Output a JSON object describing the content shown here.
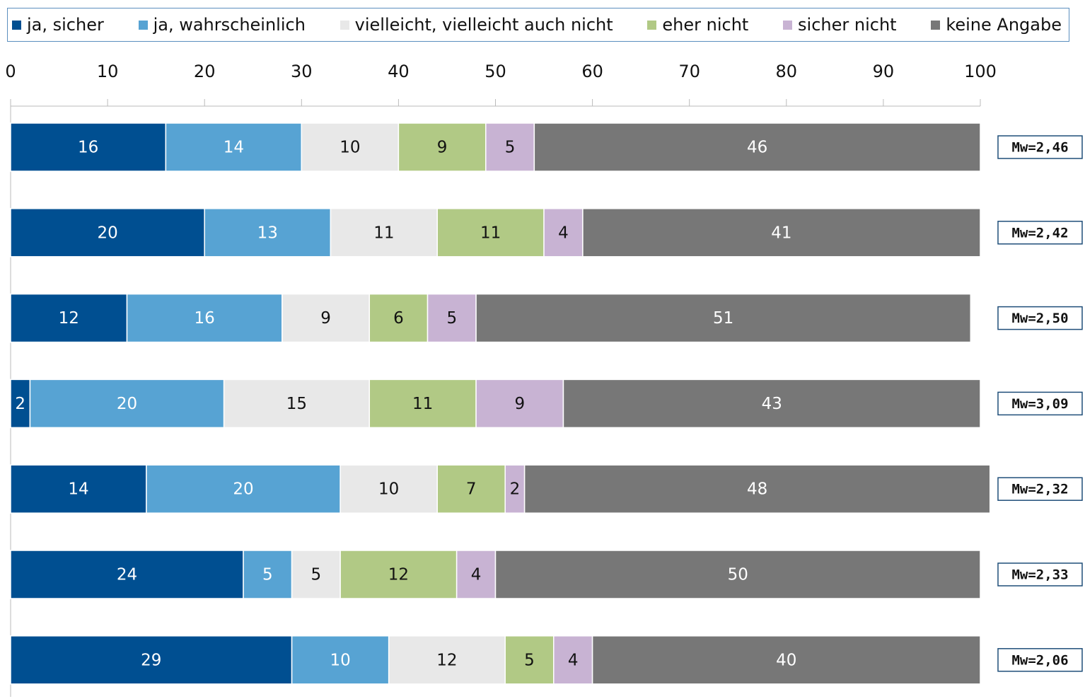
{
  "chart_data": {
    "type": "stacked_bar_horizontal",
    "categories": [
      null,
      null,
      null,
      null,
      null,
      null,
      null
    ],
    "series": [
      {
        "name": "ja, sicher",
        "color": "#004f91",
        "values": [
          16,
          20,
          12,
          2,
          14,
          24,
          29
        ]
      },
      {
        "name": "ja, wahrscheinlich",
        "color": "#57a3d3",
        "values": [
          14,
          13,
          16,
          20,
          20,
          5,
          10
        ]
      },
      {
        "name": "vielleicht, vielleicht auch nicht",
        "color": "#e8e8e8",
        "values": [
          10,
          11,
          9,
          15,
          10,
          5,
          12
        ]
      },
      {
        "name": "eher nicht",
        "color": "#b1c985",
        "values": [
          9,
          11,
          6,
          11,
          7,
          12,
          5
        ]
      },
      {
        "name": "sicher nicht",
        "color": "#c8b3d3",
        "values": [
          5,
          4,
          5,
          9,
          2,
          4,
          4
        ]
      },
      {
        "name": "keine Angabe",
        "color": "#777777",
        "values": [
          46,
          41,
          51,
          43,
          48,
          50,
          40
        ]
      }
    ],
    "annotations": [
      "Mw=2,46",
      "Mw=2,42",
      "Mw=2,50",
      "Mw=3,09",
      "Mw=2,32",
      "Mw=2,33",
      "Mw=2,06"
    ],
    "xlim": [
      0,
      100
    ],
    "xticks": [
      0,
      10,
      20,
      30,
      40,
      50,
      60,
      70,
      80,
      90,
      100
    ],
    "legend": "top"
  }
}
